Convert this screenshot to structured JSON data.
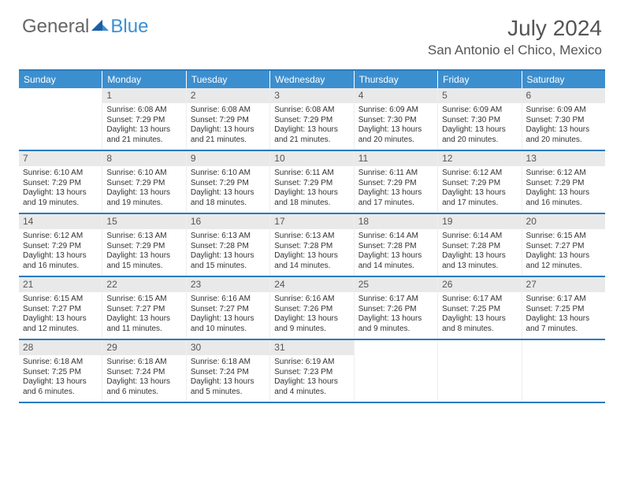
{
  "logo": {
    "text1": "General",
    "text2": "Blue"
  },
  "title": "July 2024",
  "location": "San Antonio el Chico, Mexico",
  "colors": {
    "brand": "#3c8fcf",
    "rule": "#2a7bbf",
    "daynum_bg": "#e9e9e9",
    "text": "#555555"
  },
  "days_of_week": [
    "Sunday",
    "Monday",
    "Tuesday",
    "Wednesday",
    "Thursday",
    "Friday",
    "Saturday"
  ],
  "weeks": [
    [
      null,
      {
        "n": "1",
        "sr": "Sunrise: 6:08 AM",
        "ss": "Sunset: 7:29 PM",
        "dl": "Daylight: 13 hours and 21 minutes."
      },
      {
        "n": "2",
        "sr": "Sunrise: 6:08 AM",
        "ss": "Sunset: 7:29 PM",
        "dl": "Daylight: 13 hours and 21 minutes."
      },
      {
        "n": "3",
        "sr": "Sunrise: 6:08 AM",
        "ss": "Sunset: 7:29 PM",
        "dl": "Daylight: 13 hours and 21 minutes."
      },
      {
        "n": "4",
        "sr": "Sunrise: 6:09 AM",
        "ss": "Sunset: 7:30 PM",
        "dl": "Daylight: 13 hours and 20 minutes."
      },
      {
        "n": "5",
        "sr": "Sunrise: 6:09 AM",
        "ss": "Sunset: 7:30 PM",
        "dl": "Daylight: 13 hours and 20 minutes."
      },
      {
        "n": "6",
        "sr": "Sunrise: 6:09 AM",
        "ss": "Sunset: 7:30 PM",
        "dl": "Daylight: 13 hours and 20 minutes."
      }
    ],
    [
      {
        "n": "7",
        "sr": "Sunrise: 6:10 AM",
        "ss": "Sunset: 7:29 PM",
        "dl": "Daylight: 13 hours and 19 minutes."
      },
      {
        "n": "8",
        "sr": "Sunrise: 6:10 AM",
        "ss": "Sunset: 7:29 PM",
        "dl": "Daylight: 13 hours and 19 minutes."
      },
      {
        "n": "9",
        "sr": "Sunrise: 6:10 AM",
        "ss": "Sunset: 7:29 PM",
        "dl": "Daylight: 13 hours and 18 minutes."
      },
      {
        "n": "10",
        "sr": "Sunrise: 6:11 AM",
        "ss": "Sunset: 7:29 PM",
        "dl": "Daylight: 13 hours and 18 minutes."
      },
      {
        "n": "11",
        "sr": "Sunrise: 6:11 AM",
        "ss": "Sunset: 7:29 PM",
        "dl": "Daylight: 13 hours and 17 minutes."
      },
      {
        "n": "12",
        "sr": "Sunrise: 6:12 AM",
        "ss": "Sunset: 7:29 PM",
        "dl": "Daylight: 13 hours and 17 minutes."
      },
      {
        "n": "13",
        "sr": "Sunrise: 6:12 AM",
        "ss": "Sunset: 7:29 PM",
        "dl": "Daylight: 13 hours and 16 minutes."
      }
    ],
    [
      {
        "n": "14",
        "sr": "Sunrise: 6:12 AM",
        "ss": "Sunset: 7:29 PM",
        "dl": "Daylight: 13 hours and 16 minutes."
      },
      {
        "n": "15",
        "sr": "Sunrise: 6:13 AM",
        "ss": "Sunset: 7:29 PM",
        "dl": "Daylight: 13 hours and 15 minutes."
      },
      {
        "n": "16",
        "sr": "Sunrise: 6:13 AM",
        "ss": "Sunset: 7:28 PM",
        "dl": "Daylight: 13 hours and 15 minutes."
      },
      {
        "n": "17",
        "sr": "Sunrise: 6:13 AM",
        "ss": "Sunset: 7:28 PM",
        "dl": "Daylight: 13 hours and 14 minutes."
      },
      {
        "n": "18",
        "sr": "Sunrise: 6:14 AM",
        "ss": "Sunset: 7:28 PM",
        "dl": "Daylight: 13 hours and 14 minutes."
      },
      {
        "n": "19",
        "sr": "Sunrise: 6:14 AM",
        "ss": "Sunset: 7:28 PM",
        "dl": "Daylight: 13 hours and 13 minutes."
      },
      {
        "n": "20",
        "sr": "Sunrise: 6:15 AM",
        "ss": "Sunset: 7:27 PM",
        "dl": "Daylight: 13 hours and 12 minutes."
      }
    ],
    [
      {
        "n": "21",
        "sr": "Sunrise: 6:15 AM",
        "ss": "Sunset: 7:27 PM",
        "dl": "Daylight: 13 hours and 12 minutes."
      },
      {
        "n": "22",
        "sr": "Sunrise: 6:15 AM",
        "ss": "Sunset: 7:27 PM",
        "dl": "Daylight: 13 hours and 11 minutes."
      },
      {
        "n": "23",
        "sr": "Sunrise: 6:16 AM",
        "ss": "Sunset: 7:27 PM",
        "dl": "Daylight: 13 hours and 10 minutes."
      },
      {
        "n": "24",
        "sr": "Sunrise: 6:16 AM",
        "ss": "Sunset: 7:26 PM",
        "dl": "Daylight: 13 hours and 9 minutes."
      },
      {
        "n": "25",
        "sr": "Sunrise: 6:17 AM",
        "ss": "Sunset: 7:26 PM",
        "dl": "Daylight: 13 hours and 9 minutes."
      },
      {
        "n": "26",
        "sr": "Sunrise: 6:17 AM",
        "ss": "Sunset: 7:25 PM",
        "dl": "Daylight: 13 hours and 8 minutes."
      },
      {
        "n": "27",
        "sr": "Sunrise: 6:17 AM",
        "ss": "Sunset: 7:25 PM",
        "dl": "Daylight: 13 hours and 7 minutes."
      }
    ],
    [
      {
        "n": "28",
        "sr": "Sunrise: 6:18 AM",
        "ss": "Sunset: 7:25 PM",
        "dl": "Daylight: 13 hours and 6 minutes."
      },
      {
        "n": "29",
        "sr": "Sunrise: 6:18 AM",
        "ss": "Sunset: 7:24 PM",
        "dl": "Daylight: 13 hours and 6 minutes."
      },
      {
        "n": "30",
        "sr": "Sunrise: 6:18 AM",
        "ss": "Sunset: 7:24 PM",
        "dl": "Daylight: 13 hours and 5 minutes."
      },
      {
        "n": "31",
        "sr": "Sunrise: 6:19 AM",
        "ss": "Sunset: 7:23 PM",
        "dl": "Daylight: 13 hours and 4 minutes."
      },
      null,
      null,
      null
    ]
  ]
}
